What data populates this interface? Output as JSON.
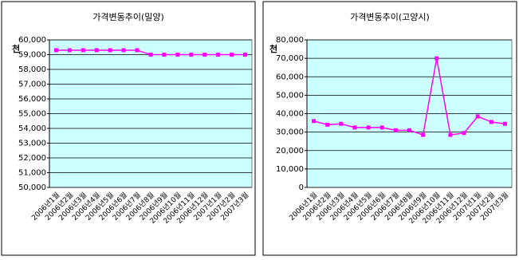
{
  "chart_data": [
    {
      "type": "line",
      "title": "가격변동추이(밀양)",
      "ylabel": "천",
      "categories": [
        "2006년1월",
        "2006년2월",
        "2006년3월",
        "2006년4월",
        "2006년5월",
        "2006년6월",
        "2006년7월",
        "2006년8월",
        "2006년9월",
        "2006년10월",
        "2006년11월",
        "2006년12월",
        "2007년1월",
        "2007년2월",
        "2007년3월"
      ],
      "values": [
        59300,
        59300,
        59300,
        59300,
        59300,
        59300,
        59300,
        59000,
        59000,
        59000,
        59000,
        59000,
        59000,
        59000,
        59000
      ],
      "color": "#ff00ff",
      "plot_background": "#ccffff",
      "grid": true,
      "ylim": [
        50000,
        60000
      ],
      "yticks": [
        {
          "value": 50000,
          "label": "50,000"
        },
        {
          "value": 51000,
          "label": "51,000"
        },
        {
          "value": 52000,
          "label": "52,000"
        },
        {
          "value": 53000,
          "label": "53,000"
        },
        {
          "value": 54000,
          "label": "54,000"
        },
        {
          "value": 55000,
          "label": "55,000"
        },
        {
          "value": 56000,
          "label": "56,000"
        },
        {
          "value": 57000,
          "label": "57,000"
        },
        {
          "value": 58000,
          "label": "58,000"
        },
        {
          "value": 59000,
          "label": "59,000"
        },
        {
          "value": 60000,
          "label": "60,000"
        }
      ]
    },
    {
      "type": "line",
      "title": "가격변동추이(고양시)",
      "ylabel": "천",
      "categories": [
        "2006년1월",
        "2006년2월",
        "2006년3월",
        "2006년4월",
        "2006년5월",
        "2006년6월",
        "2006년7월",
        "2006년8월",
        "2006년9월",
        "2006년10월",
        "2006년11월",
        "2006년12월",
        "2007년1월",
        "2007년2월",
        "2007년3월"
      ],
      "values": [
        36000,
        34000,
        34500,
        32500,
        32500,
        32500,
        31000,
        31000,
        28500,
        70000,
        28500,
        29500,
        38500,
        35500,
        34500
      ],
      "color": "#ff00ff",
      "plot_background": "#ccffff",
      "grid": true,
      "ylim": [
        0,
        80000
      ],
      "yticks": [
        0,
        {
          "value": 10000,
          "label": "10,000"
        },
        {
          "value": 20000,
          "label": "20,000"
        },
        {
          "value": 30000,
          "label": "30,000"
        },
        {
          "value": 40000,
          "label": "40,000"
        },
        {
          "value": 50000,
          "label": "50,000"
        },
        {
          "value": 60000,
          "label": "60,000"
        },
        {
          "value": 70000,
          "label": "70,000"
        },
        {
          "value": 80000,
          "label": "80,000"
        }
      ]
    }
  ]
}
